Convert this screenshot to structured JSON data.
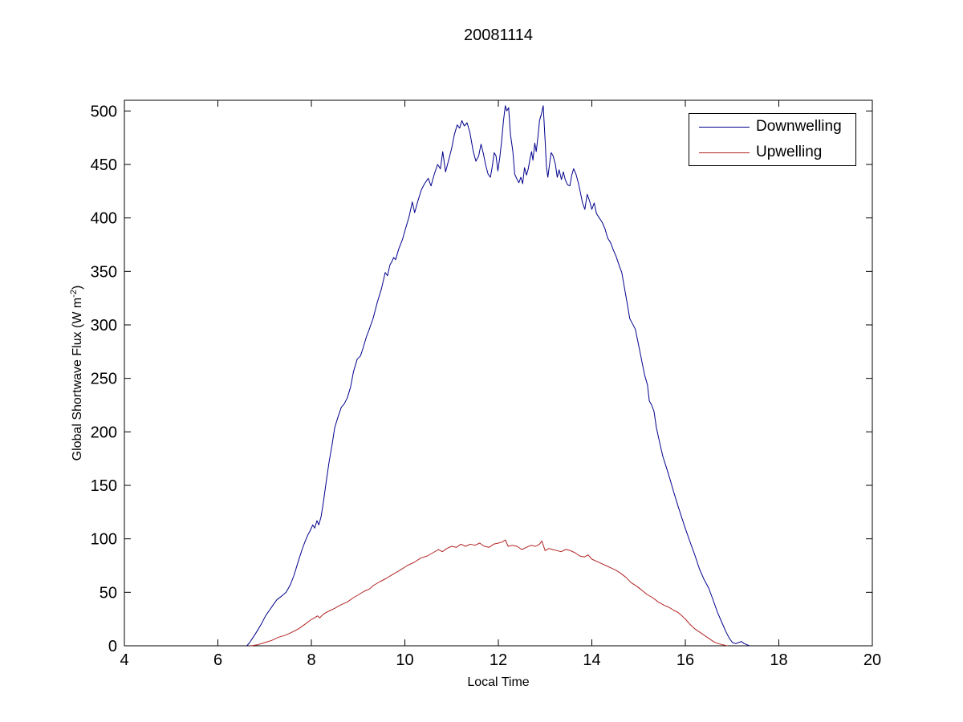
{
  "figure": {
    "title": "20081114",
    "xlabel": "Local Time",
    "ylabel_pre": "Global Shortwave Flux (W m",
    "ylabel_sup": "-2",
    "ylabel_post": ")"
  },
  "chart_data": {
    "type": "line",
    "title": "20081114",
    "xlabel": "Local Time",
    "ylabel": "Global Shortwave Flux (W m^-2)",
    "xlim": [
      4,
      20
    ],
    "ylim": [
      0,
      510
    ],
    "xticks": [
      4,
      6,
      8,
      10,
      12,
      14,
      16,
      18,
      20
    ],
    "yticks": [
      0,
      50,
      100,
      150,
      200,
      250,
      300,
      350,
      400,
      450,
      500
    ],
    "grid": false,
    "legend_position": "upper right",
    "axis_color": "#000000",
    "background": "#ffffff",
    "series": [
      {
        "name": "Downwelling",
        "color": "#00008C",
        "points": [
          [
            6.62,
            0
          ],
          [
            6.68,
            3
          ],
          [
            6.74,
            7
          ],
          [
            6.8,
            11
          ],
          [
            6.87,
            16
          ],
          [
            6.95,
            22
          ],
          [
            7.02,
            28
          ],
          [
            7.1,
            33
          ],
          [
            7.18,
            38
          ],
          [
            7.26,
            43
          ],
          [
            7.35,
            46
          ],
          [
            7.46,
            50
          ],
          [
            7.55,
            57
          ],
          [
            7.63,
            66
          ],
          [
            7.72,
            79
          ],
          [
            7.8,
            90
          ],
          [
            7.87,
            98
          ],
          [
            7.93,
            104
          ],
          [
            7.98,
            108
          ],
          [
            8.03,
            113
          ],
          [
            8.07,
            110
          ],
          [
            8.12,
            117
          ],
          [
            8.16,
            113
          ],
          [
            8.21,
            121
          ],
          [
            8.26,
            135
          ],
          [
            8.32,
            154
          ],
          [
            8.38,
            172
          ],
          [
            8.44,
            187
          ],
          [
            8.5,
            204
          ],
          [
            8.57,
            214
          ],
          [
            8.64,
            223
          ],
          [
            8.7,
            226
          ],
          [
            8.77,
            232
          ],
          [
            8.84,
            242
          ],
          [
            8.9,
            256
          ],
          [
            8.98,
            268
          ],
          [
            9.05,
            271
          ],
          [
            9.11,
            279
          ],
          [
            9.17,
            288
          ],
          [
            9.24,
            296
          ],
          [
            9.32,
            306
          ],
          [
            9.41,
            321
          ],
          [
            9.5,
            334
          ],
          [
            9.58,
            349
          ],
          [
            9.63,
            346
          ],
          [
            9.68,
            356
          ],
          [
            9.72,
            359
          ],
          [
            9.76,
            363
          ],
          [
            9.8,
            361
          ],
          [
            9.87,
            371
          ],
          [
            9.95,
            380
          ],
          [
            10.02,
            391
          ],
          [
            10.09,
            401
          ],
          [
            10.16,
            415
          ],
          [
            10.21,
            405
          ],
          [
            10.28,
            416
          ],
          [
            10.35,
            426
          ],
          [
            10.42,
            432
          ],
          [
            10.5,
            437
          ],
          [
            10.56,
            430
          ],
          [
            10.63,
            441
          ],
          [
            10.7,
            450
          ],
          [
            10.76,
            446
          ],
          [
            10.81,
            462
          ],
          [
            10.87,
            443
          ],
          [
            10.93,
            453
          ],
          [
            11.0,
            465
          ],
          [
            11.06,
            478
          ],
          [
            11.12,
            487
          ],
          [
            11.17,
            484
          ],
          [
            11.22,
            491
          ],
          [
            11.27,
            486
          ],
          [
            11.33,
            489
          ],
          [
            11.39,
            480
          ],
          [
            11.46,
            463
          ],
          [
            11.52,
            453
          ],
          [
            11.58,
            458
          ],
          [
            11.63,
            469
          ],
          [
            11.68,
            460
          ],
          [
            11.73,
            449
          ],
          [
            11.78,
            441
          ],
          [
            11.83,
            438
          ],
          [
            11.87,
            448
          ],
          [
            11.91,
            461
          ],
          [
            11.95,
            458
          ],
          [
            11.99,
            444
          ],
          [
            12.03,
            456
          ],
          [
            12.07,
            472
          ],
          [
            12.11,
            491
          ],
          [
            12.15,
            505
          ],
          [
            12.18,
            500
          ],
          [
            12.22,
            503
          ],
          [
            12.26,
            478
          ],
          [
            12.31,
            462
          ],
          [
            12.35,
            441
          ],
          [
            12.4,
            436
          ],
          [
            12.44,
            433
          ],
          [
            12.48,
            438
          ],
          [
            12.52,
            432
          ],
          [
            12.56,
            447
          ],
          [
            12.6,
            440
          ],
          [
            12.64,
            446
          ],
          [
            12.68,
            456
          ],
          [
            12.71,
            462
          ],
          [
            12.74,
            454
          ],
          [
            12.78,
            470
          ],
          [
            12.81,
            462
          ],
          [
            12.85,
            477
          ],
          [
            12.88,
            491
          ],
          [
            12.92,
            497
          ],
          [
            12.96,
            505
          ],
          [
            13.0,
            472
          ],
          [
            13.03,
            447
          ],
          [
            13.06,
            438
          ],
          [
            13.1,
            452
          ],
          [
            13.13,
            461
          ],
          [
            13.17,
            458
          ],
          [
            13.22,
            450
          ],
          [
            13.26,
            438
          ],
          [
            13.3,
            445
          ],
          [
            13.35,
            436
          ],
          [
            13.39,
            443
          ],
          [
            13.43,
            436
          ],
          [
            13.48,
            431
          ],
          [
            13.53,
            430
          ],
          [
            13.57,
            440
          ],
          [
            13.61,
            446
          ],
          [
            13.66,
            441
          ],
          [
            13.71,
            433
          ],
          [
            13.75,
            425
          ],
          [
            13.8,
            414
          ],
          [
            13.85,
            408
          ],
          [
            13.9,
            422
          ],
          [
            13.95,
            416
          ],
          [
            14.0,
            408
          ],
          [
            14.05,
            414
          ],
          [
            14.1,
            404
          ],
          [
            14.16,
            400
          ],
          [
            14.22,
            396
          ],
          [
            14.28,
            390
          ],
          [
            14.34,
            381
          ],
          [
            14.4,
            377
          ],
          [
            14.46,
            370
          ],
          [
            14.52,
            364
          ],
          [
            14.58,
            356
          ],
          [
            14.64,
            349
          ],
          [
            14.7,
            334
          ],
          [
            14.76,
            319
          ],
          [
            14.81,
            306
          ],
          [
            14.87,
            301
          ],
          [
            14.93,
            296
          ],
          [
            15.0,
            281
          ],
          [
            15.07,
            266
          ],
          [
            15.13,
            253
          ],
          [
            15.19,
            244
          ],
          [
            15.23,
            229
          ],
          [
            15.28,
            225
          ],
          [
            15.33,
            219
          ],
          [
            15.38,
            204
          ],
          [
            15.45,
            190
          ],
          [
            15.52,
            177
          ],
          [
            15.6,
            166
          ],
          [
            15.67,
            156
          ],
          [
            15.75,
            144
          ],
          [
            15.84,
            131
          ],
          [
            15.93,
            119
          ],
          [
            16.02,
            107
          ],
          [
            16.11,
            96
          ],
          [
            16.21,
            84
          ],
          [
            16.3,
            72
          ],
          [
            16.4,
            62
          ],
          [
            16.5,
            54
          ],
          [
            16.6,
            42
          ],
          [
            16.69,
            31
          ],
          [
            16.79,
            21
          ],
          [
            16.87,
            13
          ],
          [
            16.94,
            7
          ],
          [
            17.01,
            3
          ],
          [
            17.08,
            2
          ],
          [
            17.14,
            3
          ],
          [
            17.2,
            4
          ],
          [
            17.26,
            2
          ],
          [
            17.32,
            1
          ],
          [
            17.37,
            0
          ]
        ]
      },
      {
        "name": "Upwelling",
        "color": "#B22222",
        "points": [
          [
            6.7,
            0
          ],
          [
            6.85,
            1
          ],
          [
            7.0,
            3
          ],
          [
            7.15,
            5
          ],
          [
            7.3,
            8
          ],
          [
            7.45,
            10
          ],
          [
            7.6,
            13
          ],
          [
            7.73,
            16
          ],
          [
            7.86,
            20
          ],
          [
            7.98,
            24
          ],
          [
            8.06,
            26
          ],
          [
            8.13,
            28
          ],
          [
            8.18,
            26
          ],
          [
            8.24,
            29
          ],
          [
            8.31,
            31
          ],
          [
            8.4,
            33
          ],
          [
            8.5,
            35
          ],
          [
            8.62,
            38
          ],
          [
            8.77,
            41
          ],
          [
            8.9,
            45
          ],
          [
            9.02,
            48
          ],
          [
            9.13,
            51
          ],
          [
            9.24,
            53
          ],
          [
            9.35,
            57
          ],
          [
            9.47,
            60
          ],
          [
            9.6,
            63
          ],
          [
            9.75,
            67
          ],
          [
            9.91,
            71
          ],
          [
            10.05,
            75
          ],
          [
            10.2,
            78
          ],
          [
            10.34,
            82
          ],
          [
            10.48,
            84
          ],
          [
            10.6,
            87
          ],
          [
            10.72,
            90
          ],
          [
            10.8,
            88
          ],
          [
            10.9,
            91
          ],
          [
            11.0,
            93
          ],
          [
            11.1,
            92
          ],
          [
            11.2,
            95
          ],
          [
            11.3,
            93
          ],
          [
            11.4,
            95
          ],
          [
            11.5,
            94
          ],
          [
            11.6,
            96
          ],
          [
            11.7,
            93
          ],
          [
            11.8,
            92
          ],
          [
            11.9,
            95
          ],
          [
            12.0,
            96
          ],
          [
            12.08,
            97
          ],
          [
            12.15,
            99
          ],
          [
            12.21,
            93
          ],
          [
            12.3,
            94
          ],
          [
            12.4,
            93
          ],
          [
            12.5,
            90
          ],
          [
            12.6,
            92
          ],
          [
            12.7,
            94
          ],
          [
            12.8,
            93
          ],
          [
            12.88,
            95
          ],
          [
            12.93,
            98
          ],
          [
            13.0,
            89
          ],
          [
            13.08,
            91
          ],
          [
            13.16,
            90
          ],
          [
            13.25,
            89
          ],
          [
            13.34,
            88
          ],
          [
            13.44,
            90
          ],
          [
            13.54,
            89
          ],
          [
            13.64,
            87
          ],
          [
            13.74,
            84
          ],
          [
            13.84,
            83
          ],
          [
            13.92,
            85
          ],
          [
            14.0,
            81
          ],
          [
            14.1,
            79
          ],
          [
            14.2,
            77
          ],
          [
            14.3,
            75
          ],
          [
            14.4,
            73
          ],
          [
            14.5,
            71
          ],
          [
            14.61,
            68
          ],
          [
            14.73,
            64
          ],
          [
            14.84,
            59
          ],
          [
            14.95,
            56
          ],
          [
            15.07,
            52
          ],
          [
            15.18,
            48
          ],
          [
            15.3,
            45
          ],
          [
            15.42,
            41
          ],
          [
            15.54,
            38
          ],
          [
            15.65,
            36
          ],
          [
            15.76,
            33
          ],
          [
            15.85,
            31
          ],
          [
            15.93,
            28
          ],
          [
            16.02,
            24
          ],
          [
            16.1,
            20
          ],
          [
            16.2,
            16
          ],
          [
            16.3,
            13
          ],
          [
            16.4,
            10
          ],
          [
            16.5,
            7
          ],
          [
            16.6,
            4
          ],
          [
            16.7,
            2
          ],
          [
            16.8,
            1
          ],
          [
            16.9,
            0
          ]
        ]
      }
    ]
  }
}
